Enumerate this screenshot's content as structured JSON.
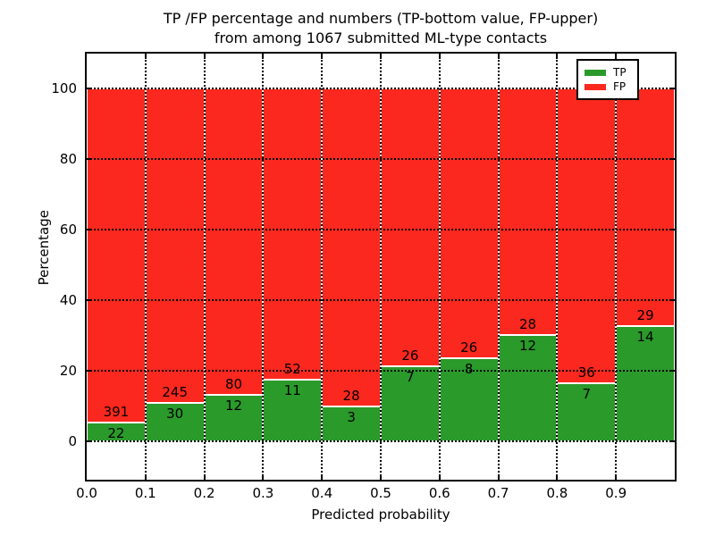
{
  "title": {
    "line1": "TP /FP percentage and numbers (TP-bottom value, FP-upper)",
    "line2": "from among 1067 submitted ML-type contacts"
  },
  "chart_data": {
    "type": "bar",
    "stacked": true,
    "title": "TP /FP percentage and numbers (TP-bottom value, FP-upper) from among 1067 submitted ML-type contacts",
    "xlabel": "Predicted probability",
    "ylabel": "Percentage",
    "xlim": [
      0.0,
      1.0
    ],
    "ylim": [
      -11,
      110
    ],
    "x_ticks": [
      "0.0",
      "0.1",
      "0.2",
      "0.3",
      "0.4",
      "0.5",
      "0.6",
      "0.7",
      "0.8",
      "0.9"
    ],
    "y_ticks": [
      0,
      20,
      40,
      60,
      80,
      100
    ],
    "grid": "dotted",
    "total_contacts": 1067,
    "colors": {
      "tp": "#2a9a2a",
      "fp": "#fa281e",
      "grid": "#000000",
      "bar_edge": "#ffffff"
    },
    "legend": {
      "position": "upper-right",
      "entries": [
        {
          "label": "TP",
          "color": "#2a9a2a"
        },
        {
          "label": "FP",
          "color": "#fa281e"
        }
      ]
    },
    "bins": [
      {
        "range": [
          0.0,
          0.1
        ],
        "tp": 22,
        "fp": 391,
        "tp_pct": 5.33
      },
      {
        "range": [
          0.1,
          0.2
        ],
        "tp": 30,
        "fp": 245,
        "tp_pct": 10.91
      },
      {
        "range": [
          0.2,
          0.3
        ],
        "tp": 12,
        "fp": 80,
        "tp_pct": 13.04
      },
      {
        "range": [
          0.3,
          0.4
        ],
        "tp": 11,
        "fp": 52,
        "tp_pct": 17.46
      },
      {
        "range": [
          0.4,
          0.5
        ],
        "tp": 3,
        "fp": 28,
        "tp_pct": 9.68
      },
      {
        "range": [
          0.5,
          0.6
        ],
        "tp": 7,
        "fp": 26,
        "tp_pct": 21.21
      },
      {
        "range": [
          0.6,
          0.7
        ],
        "tp": 8,
        "fp": 26,
        "tp_pct": 23.53
      },
      {
        "range": [
          0.7,
          0.8
        ],
        "tp": 12,
        "fp": 28,
        "tp_pct": 30.0
      },
      {
        "range": [
          0.8,
          0.9
        ],
        "tp": 7,
        "fp": 36,
        "tp_pct": 16.28
      },
      {
        "range": [
          0.9,
          1.0
        ],
        "tp": 14,
        "fp": 29,
        "tp_pct": 32.56
      }
    ]
  }
}
